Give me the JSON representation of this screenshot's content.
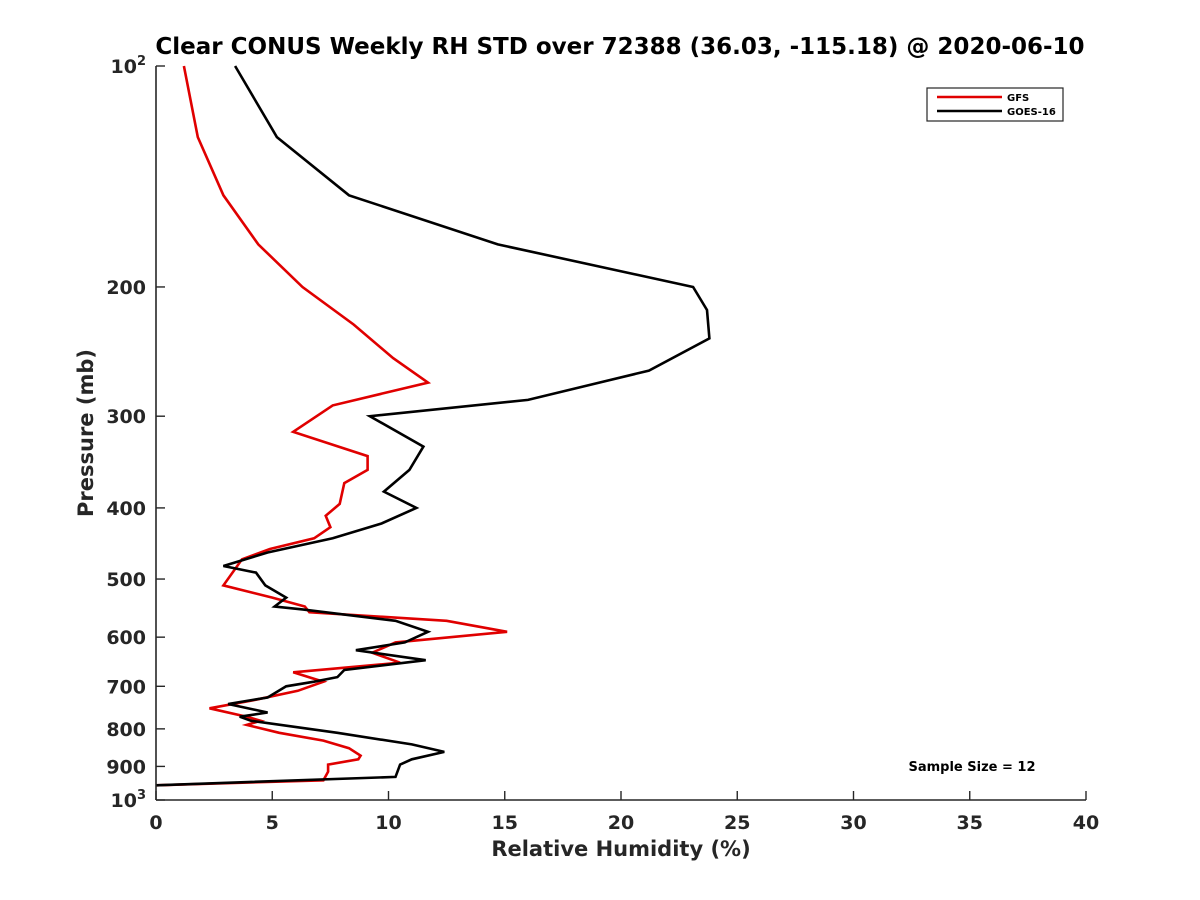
{
  "chart_data": {
    "type": "line",
    "title": "Clear CONUS Weekly RH STD over 72388 (36.03, -115.18) @ 2020-06-10",
    "xlabel": "Relative Humidity (%)",
    "ylabel": "Pressure (mb)",
    "xlim": [
      0,
      40
    ],
    "ylim": [
      100,
      1000
    ],
    "y_scale": "log",
    "y_reversed": true,
    "grid": false,
    "legend_position": "top-right",
    "x_ticks": [
      {
        "value": 0,
        "label": "0"
      },
      {
        "value": 5,
        "label": "5"
      },
      {
        "value": 10,
        "label": "10"
      },
      {
        "value": 15,
        "label": "15"
      },
      {
        "value": 20,
        "label": "20"
      },
      {
        "value": 25,
        "label": "25"
      },
      {
        "value": 30,
        "label": "30"
      },
      {
        "value": 35,
        "label": "35"
      },
      {
        "value": 40,
        "label": "40"
      }
    ],
    "y_ticks": [
      {
        "value": 100,
        "label": "10",
        "sup": "2"
      },
      {
        "value": 200,
        "label": "200",
        "sup": ""
      },
      {
        "value": 300,
        "label": "300",
        "sup": ""
      },
      {
        "value": 400,
        "label": "400",
        "sup": ""
      },
      {
        "value": 500,
        "label": "500",
        "sup": ""
      },
      {
        "value": 600,
        "label": "600",
        "sup": ""
      },
      {
        "value": 700,
        "label": "700",
        "sup": ""
      },
      {
        "value": 800,
        "label": "800",
        "sup": ""
      },
      {
        "value": 900,
        "label": "900",
        "sup": ""
      },
      {
        "value": 1000,
        "label": "10",
        "sup": "3"
      }
    ],
    "annotation": "Sample Size = 12",
    "series": [
      {
        "name": "GFS",
        "color": "#e00000",
        "points": [
          {
            "x": 1.2,
            "p": 100
          },
          {
            "x": 1.8,
            "p": 125
          },
          {
            "x": 2.9,
            "p": 150
          },
          {
            "x": 4.4,
            "p": 175
          },
          {
            "x": 6.3,
            "p": 200
          },
          {
            "x": 8.5,
            "p": 225
          },
          {
            "x": 10.2,
            "p": 250
          },
          {
            "x": 11.7,
            "p": 270
          },
          {
            "x": 7.6,
            "p": 290
          },
          {
            "x": 5.9,
            "p": 315
          },
          {
            "x": 9.1,
            "p": 340
          },
          {
            "x": 9.1,
            "p": 355
          },
          {
            "x": 8.1,
            "p": 370
          },
          {
            "x": 7.9,
            "p": 395
          },
          {
            "x": 7.3,
            "p": 410
          },
          {
            "x": 7.5,
            "p": 425
          },
          {
            "x": 6.8,
            "p": 440
          },
          {
            "x": 4.9,
            "p": 455
          },
          {
            "x": 3.7,
            "p": 470
          },
          {
            "x": 2.9,
            "p": 510
          },
          {
            "x": 5.0,
            "p": 530
          },
          {
            "x": 6.4,
            "p": 545
          },
          {
            "x": 6.6,
            "p": 555
          },
          {
            "x": 12.5,
            "p": 570
          },
          {
            "x": 15.1,
            "p": 590
          },
          {
            "x": 10.3,
            "p": 610
          },
          {
            "x": 9.3,
            "p": 630
          },
          {
            "x": 10.5,
            "p": 650
          },
          {
            "x": 5.9,
            "p": 670
          },
          {
            "x": 7.2,
            "p": 690
          },
          {
            "x": 6.1,
            "p": 710
          },
          {
            "x": 4.3,
            "p": 730
          },
          {
            "x": 2.3,
            "p": 750
          },
          {
            "x": 3.9,
            "p": 770
          },
          {
            "x": 4.5,
            "p": 780
          },
          {
            "x": 3.9,
            "p": 790
          },
          {
            "x": 5.3,
            "p": 810
          },
          {
            "x": 7.2,
            "p": 830
          },
          {
            "x": 8.3,
            "p": 850
          },
          {
            "x": 8.8,
            "p": 870
          },
          {
            "x": 8.7,
            "p": 880
          },
          {
            "x": 7.4,
            "p": 895
          },
          {
            "x": 7.4,
            "p": 915
          },
          {
            "x": 7.2,
            "p": 940
          },
          {
            "x": 0.0,
            "p": 955
          }
        ]
      },
      {
        "name": "GOES-16",
        "color": "#000000",
        "points": [
          {
            "x": 3.4,
            "p": 100
          },
          {
            "x": 5.2,
            "p": 125
          },
          {
            "x": 8.3,
            "p": 150
          },
          {
            "x": 14.7,
            "p": 175
          },
          {
            "x": 23.1,
            "p": 200
          },
          {
            "x": 23.7,
            "p": 215
          },
          {
            "x": 23.8,
            "p": 235
          },
          {
            "x": 21.2,
            "p": 260
          },
          {
            "x": 16.0,
            "p": 285
          },
          {
            "x": 9.2,
            "p": 300
          },
          {
            "x": 11.5,
            "p": 330
          },
          {
            "x": 10.9,
            "p": 355
          },
          {
            "x": 9.8,
            "p": 380
          },
          {
            "x": 11.2,
            "p": 400
          },
          {
            "x": 9.7,
            "p": 420
          },
          {
            "x": 7.6,
            "p": 440
          },
          {
            "x": 4.8,
            "p": 460
          },
          {
            "x": 2.9,
            "p": 480
          },
          {
            "x": 4.3,
            "p": 490
          },
          {
            "x": 4.7,
            "p": 510
          },
          {
            "x": 5.6,
            "p": 530
          },
          {
            "x": 5.1,
            "p": 545
          },
          {
            "x": 6.3,
            "p": 550
          },
          {
            "x": 10.3,
            "p": 570
          },
          {
            "x": 11.7,
            "p": 590
          },
          {
            "x": 10.7,
            "p": 610
          },
          {
            "x": 8.6,
            "p": 625
          },
          {
            "x": 11.6,
            "p": 645
          },
          {
            "x": 8.1,
            "p": 665
          },
          {
            "x": 7.8,
            "p": 680
          },
          {
            "x": 6.8,
            "p": 690
          },
          {
            "x": 5.6,
            "p": 700
          },
          {
            "x": 4.8,
            "p": 725
          },
          {
            "x": 3.1,
            "p": 740
          },
          {
            "x": 4.8,
            "p": 760
          },
          {
            "x": 3.6,
            "p": 770
          },
          {
            "x": 4.1,
            "p": 780
          },
          {
            "x": 7.8,
            "p": 810
          },
          {
            "x": 11.0,
            "p": 840
          },
          {
            "x": 12.4,
            "p": 860
          },
          {
            "x": 11.0,
            "p": 880
          },
          {
            "x": 10.5,
            "p": 895
          },
          {
            "x": 10.3,
            "p": 930
          },
          {
            "x": 0.0,
            "p": 955
          }
        ]
      }
    ]
  }
}
